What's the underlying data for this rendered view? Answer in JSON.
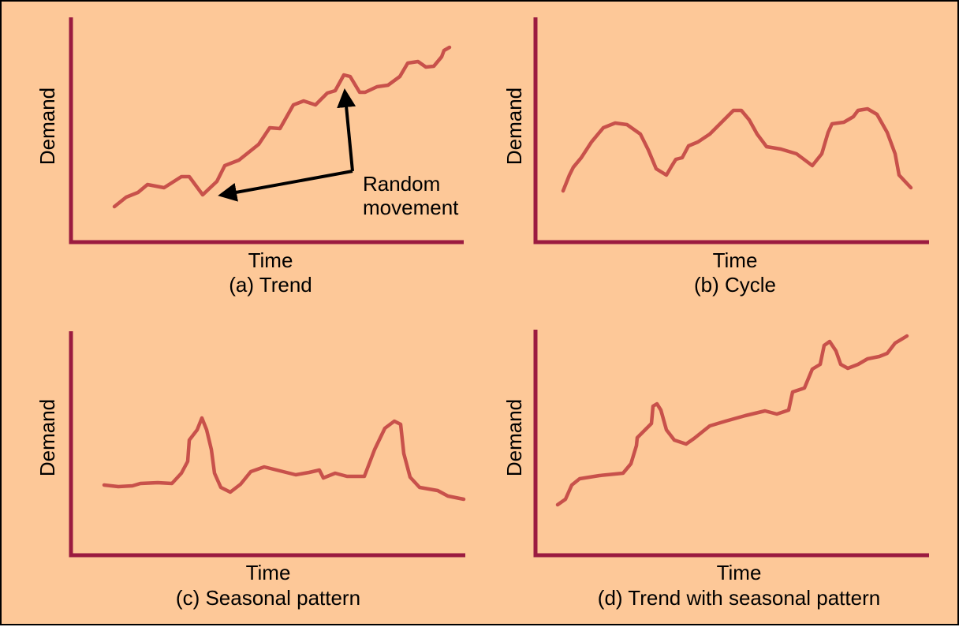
{
  "panels": [
    {
      "y_label": "Demand",
      "x_label": "Time",
      "caption": "(a) Trend",
      "annotation": [
        "Random",
        "movement"
      ]
    },
    {
      "y_label": "Demand",
      "x_label": "Time",
      "caption": "(b) Cycle"
    },
    {
      "y_label": "Demand",
      "x_label": "Time",
      "caption": "(c) Seasonal pattern"
    },
    {
      "y_label": "Demand",
      "x_label": "Time",
      "caption": "(d) Trend with seasonal pattern"
    }
  ]
}
